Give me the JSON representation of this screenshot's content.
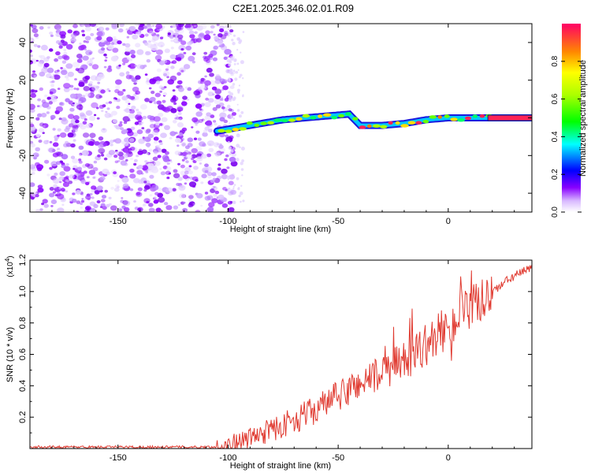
{
  "title": "C2E1.2025.346.02.01.R09",
  "chart_data": [
    {
      "type": "heatmap",
      "id": "spectrogram",
      "xlabel": "Height of straight line (km)",
      "ylabel": "Frequency (Hz)",
      "xlim": [
        -190,
        38
      ],
      "ylim": [
        -50,
        50
      ],
      "x_ticks": [
        -150,
        -100,
        -50,
        0
      ],
      "x_tick_labels": [
        "-150",
        "-100",
        "-50",
        "0"
      ],
      "y_ticks": [
        -40,
        -20,
        0,
        20,
        40
      ],
      "y_tick_labels": [
        "-40",
        "-20",
        "0",
        "20",
        "40"
      ],
      "noise_region_x": [
        -190,
        -100
      ],
      "signal_track": {
        "x": [
          -105,
          -95,
          -85,
          -75,
          -65,
          -55,
          -45,
          -40,
          -30,
          -20,
          -10,
          0,
          10,
          20,
          38
        ],
        "y": [
          -7,
          -5,
          -3,
          -1,
          0,
          1,
          2,
          -4,
          -4,
          -3,
          -1,
          0,
          0,
          0,
          0
        ]
      }
    },
    {
      "type": "colorbar",
      "id": "colorbar",
      "label": "Normalized spectral amplitude",
      "range": [
        0,
        1
      ],
      "ticks": [
        0.0,
        0.2,
        0.4,
        0.6,
        0.8
      ],
      "tick_labels": [
        "0.0",
        "0.2",
        "0.4",
        "0.6",
        "0.8"
      ]
    },
    {
      "type": "line",
      "id": "snr",
      "xlabel": "Height of straight line (km)",
      "ylabel": "SNR (10 * v/v)",
      "scale_note": "(x10",
      "scale_exp": "4",
      "scale_close": ")",
      "xlim": [
        -190,
        38
      ],
      "ylim": [
        0,
        1.2
      ],
      "x_ticks": [
        -150,
        -100,
        -50,
        0
      ],
      "x_tick_labels": [
        "-150",
        "-100",
        "-50",
        "0"
      ],
      "y_ticks": [
        0.2,
        0.4,
        0.6,
        0.8,
        1.0,
        1.2
      ],
      "y_tick_labels": [
        "0.2",
        "0.4",
        "0.6",
        "0.8",
        "1.0",
        "1.2"
      ],
      "color": "#e03a30",
      "trend": {
        "x": [
          -190,
          -105,
          -95,
          -80,
          -70,
          -60,
          -50,
          -40,
          -30,
          -20,
          -10,
          0,
          10,
          20,
          30,
          38
        ],
        "y": [
          0.01,
          0.01,
          0.04,
          0.12,
          0.18,
          0.25,
          0.33,
          0.42,
          0.48,
          0.56,
          0.66,
          0.78,
          0.88,
          1.0,
          1.1,
          1.15
        ]
      }
    }
  ]
}
